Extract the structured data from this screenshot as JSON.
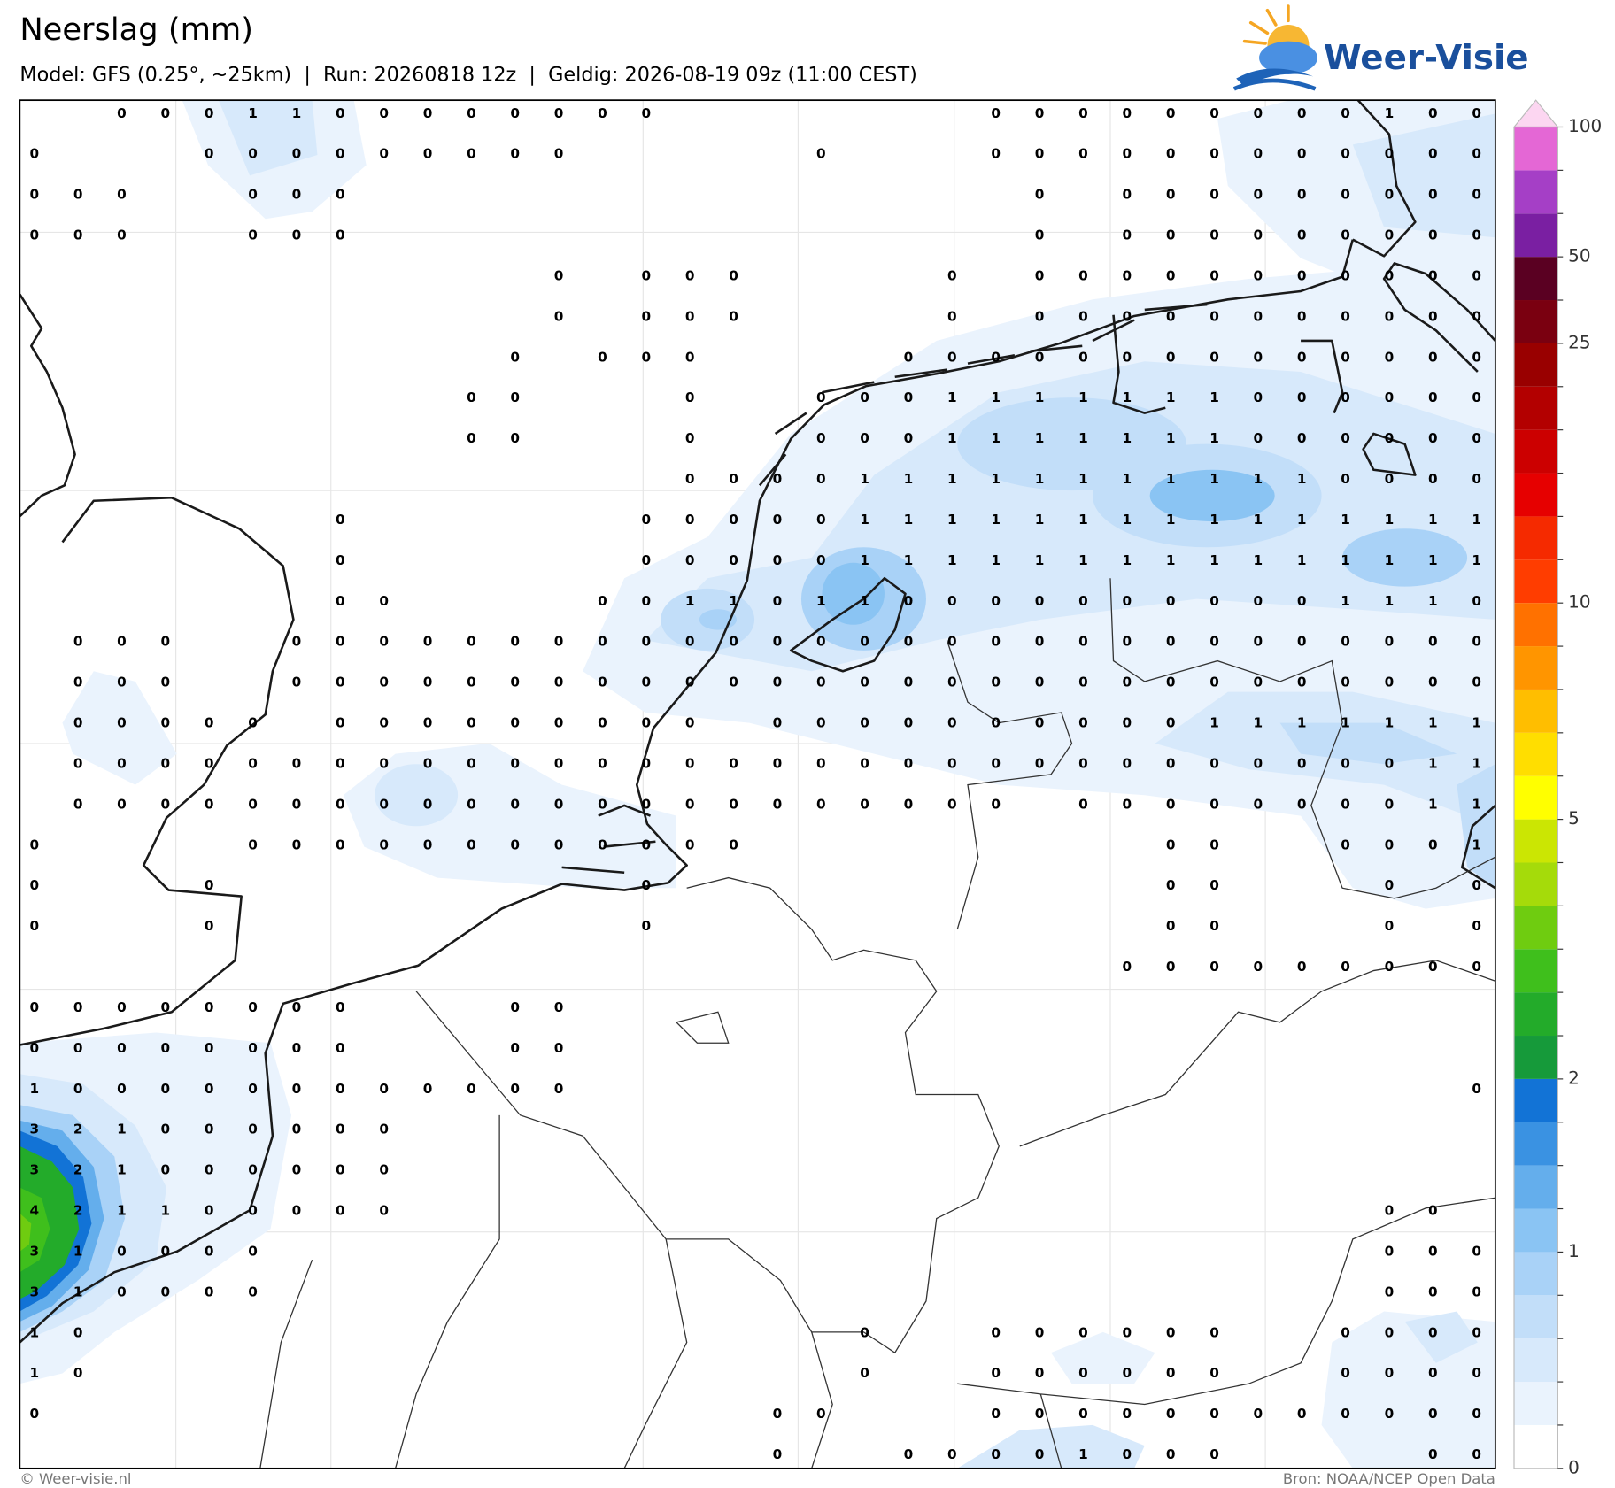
{
  "header": {
    "title": "Neerslag (mm)",
    "subtitle": "Model: GFS (0.25°, ~25km)  |  Run: 20260818 12z  |  Geldig: 2026-08-19 09z (11:00 CEST)",
    "logo": "Weer-Visie"
  },
  "grid": {
    "rows": [
      [
        null,
        null,
        0,
        0,
        0,
        1,
        1,
        0,
        0,
        0,
        0,
        0,
        0,
        0,
        0,
        null,
        null,
        null,
        null,
        null,
        null,
        null,
        0,
        0,
        0,
        0,
        0,
        0,
        0,
        0,
        0,
        1,
        0,
        0
      ],
      [
        0,
        null,
        null,
        null,
        0,
        0,
        0,
        0,
        0,
        0,
        0,
        0,
        0,
        null,
        null,
        null,
        null,
        null,
        0,
        null,
        null,
        null,
        0,
        0,
        0,
        0,
        0,
        0,
        0,
        0,
        0,
        0,
        0,
        0
      ],
      [
        0,
        0,
        0,
        null,
        null,
        0,
        0,
        0,
        null,
        null,
        null,
        null,
        null,
        null,
        null,
        null,
        null,
        null,
        null,
        null,
        null,
        null,
        null,
        0,
        null,
        0,
        0,
        0,
        0,
        0,
        0,
        0,
        0,
        0
      ],
      [
        0,
        0,
        0,
        null,
        null,
        0,
        0,
        0,
        null,
        null,
        null,
        null,
        null,
        null,
        null,
        null,
        null,
        null,
        null,
        null,
        null,
        null,
        null,
        0,
        null,
        0,
        0,
        0,
        0,
        0,
        0,
        0,
        0,
        0
      ],
      [
        null,
        null,
        null,
        null,
        null,
        null,
        null,
        null,
        null,
        null,
        null,
        null,
        0,
        null,
        0,
        0,
        0,
        null,
        null,
        null,
        null,
        0,
        null,
        0,
        0,
        0,
        0,
        0,
        0,
        0,
        0,
        0,
        0,
        0
      ],
      [
        null,
        null,
        null,
        null,
        null,
        null,
        null,
        null,
        null,
        null,
        null,
        null,
        0,
        null,
        0,
        0,
        0,
        null,
        null,
        null,
        null,
        0,
        null,
        0,
        0,
        0,
        0,
        0,
        0,
        0,
        0,
        0,
        0,
        0
      ],
      [
        null,
        null,
        null,
        null,
        null,
        null,
        null,
        null,
        null,
        null,
        null,
        0,
        null,
        0,
        0,
        0,
        null,
        null,
        null,
        null,
        0,
        0,
        0,
        0,
        0,
        0,
        0,
        0,
        0,
        0,
        0,
        0,
        0,
        0
      ],
      [
        null,
        null,
        null,
        null,
        null,
        null,
        null,
        null,
        null,
        null,
        0,
        0,
        null,
        null,
        null,
        0,
        null,
        null,
        0,
        0,
        0,
        1,
        1,
        1,
        1,
        1,
        1,
        1,
        0,
        0,
        0,
        0,
        0,
        0
      ],
      [
        null,
        null,
        null,
        null,
        null,
        null,
        null,
        null,
        null,
        null,
        0,
        0,
        null,
        null,
        null,
        0,
        null,
        null,
        0,
        0,
        0,
        1,
        1,
        1,
        1,
        1,
        1,
        1,
        0,
        0,
        0,
        0,
        0,
        0
      ],
      [
        null,
        null,
        null,
        null,
        null,
        null,
        null,
        null,
        null,
        null,
        null,
        null,
        null,
        null,
        null,
        0,
        0,
        0,
        0,
        1,
        1,
        1,
        1,
        1,
        1,
        1,
        1,
        1,
        1,
        1,
        0,
        0,
        0,
        0
      ],
      [
        null,
        null,
        null,
        null,
        null,
        null,
        null,
        0,
        null,
        null,
        null,
        null,
        null,
        null,
        0,
        0,
        0,
        0,
        0,
        1,
        1,
        1,
        1,
        1,
        1,
        1,
        1,
        1,
        1,
        1,
        1,
        1,
        1,
        1
      ],
      [
        null,
        null,
        null,
        null,
        null,
        null,
        null,
        0,
        null,
        null,
        null,
        null,
        null,
        null,
        0,
        0,
        0,
        0,
        0,
        1,
        1,
        1,
        1,
        1,
        1,
        1,
        1,
        1,
        1,
        1,
        1,
        1,
        1,
        1
      ],
      [
        null,
        null,
        null,
        null,
        null,
        null,
        null,
        0,
        0,
        null,
        null,
        null,
        null,
        0,
        0,
        1,
        1,
        0,
        1,
        1,
        0,
        0,
        0,
        0,
        0,
        0,
        0,
        0,
        0,
        0,
        1,
        1,
        1,
        0
      ],
      [
        null,
        0,
        0,
        0,
        null,
        null,
        0,
        0,
        0,
        0,
        0,
        0,
        0,
        0,
        0,
        0,
        0,
        0,
        0,
        0,
        0,
        0,
        0,
        0,
        0,
        0,
        0,
        0,
        0,
        0,
        0,
        0,
        0,
        0
      ],
      [
        null,
        0,
        0,
        0,
        null,
        null,
        0,
        0,
        0,
        0,
        0,
        0,
        0,
        0,
        0,
        0,
        0,
        0,
        0,
        0,
        0,
        0,
        0,
        0,
        0,
        0,
        0,
        0,
        0,
        0,
        0,
        0,
        0,
        0
      ],
      [
        null,
        0,
        0,
        0,
        0,
        0,
        null,
        0,
        0,
        0,
        0,
        0,
        0,
        0,
        0,
        0,
        null,
        0,
        0,
        0,
        0,
        0,
        0,
        0,
        0,
        0,
        0,
        1,
        1,
        1,
        1,
        1,
        1,
        1
      ],
      [
        null,
        0,
        0,
        0,
        0,
        0,
        0,
        0,
        0,
        0,
        0,
        0,
        0,
        0,
        0,
        0,
        0,
        0,
        0,
        0,
        0,
        0,
        0,
        0,
        0,
        0,
        0,
        0,
        0,
        0,
        0,
        0,
        1,
        1
      ],
      [
        null,
        0,
        0,
        0,
        0,
        0,
        0,
        0,
        0,
        0,
        0,
        0,
        0,
        0,
        0,
        0,
        0,
        0,
        0,
        0,
        0,
        0,
        0,
        null,
        0,
        0,
        0,
        0,
        0,
        0,
        0,
        0,
        1,
        1
      ],
      [
        0,
        null,
        null,
        null,
        null,
        0,
        0,
        0,
        0,
        0,
        0,
        0,
        0,
        0,
        0,
        0,
        0,
        null,
        null,
        null,
        null,
        null,
        null,
        null,
        null,
        null,
        0,
        0,
        null,
        null,
        0,
        0,
        0,
        1
      ],
      [
        0,
        null,
        null,
        null,
        0,
        null,
        null,
        null,
        null,
        null,
        null,
        null,
        null,
        null,
        0,
        null,
        null,
        null,
        null,
        null,
        null,
        null,
        null,
        null,
        null,
        null,
        0,
        0,
        null,
        null,
        null,
        0,
        null,
        0
      ],
      [
        0,
        null,
        null,
        null,
        0,
        null,
        null,
        null,
        null,
        null,
        null,
        null,
        null,
        null,
        0,
        null,
        null,
        null,
        null,
        null,
        null,
        null,
        null,
        null,
        null,
        null,
        0,
        0,
        null,
        null,
        null,
        0,
        null,
        0
      ],
      [
        null,
        null,
        null,
        null,
        null,
        null,
        null,
        null,
        null,
        null,
        null,
        null,
        null,
        null,
        null,
        null,
        null,
        null,
        null,
        null,
        null,
        null,
        null,
        null,
        null,
        0,
        0,
        0,
        0,
        0,
        0,
        0,
        0,
        0
      ],
      [
        0,
        0,
        0,
        0,
        0,
        0,
        0,
        0,
        null,
        null,
        null,
        0,
        0,
        null,
        null,
        null,
        null,
        null,
        null,
        null,
        null,
        null,
        null,
        null,
        null,
        null,
        null,
        null,
        null,
        null,
        null,
        null,
        null,
        null
      ],
      [
        0,
        0,
        0,
        0,
        0,
        0,
        0,
        0,
        null,
        null,
        null,
        0,
        0,
        null,
        null,
        null,
        null,
        null,
        null,
        null,
        null,
        null,
        null,
        null,
        null,
        null,
        null,
        null,
        null,
        null,
        null,
        null,
        null,
        null
      ],
      [
        1,
        0,
        0,
        0,
        0,
        0,
        0,
        0,
        0,
        0,
        0,
        0,
        0,
        null,
        null,
        null,
        null,
        null,
        null,
        null,
        null,
        null,
        null,
        null,
        null,
        null,
        null,
        null,
        null,
        null,
        null,
        null,
        null,
        0
      ],
      [
        3,
        2,
        1,
        0,
        0,
        0,
        0,
        0,
        0,
        null,
        null,
        null,
        null,
        null,
        null,
        null,
        null,
        null,
        null,
        null,
        null,
        null,
        null,
        null,
        null,
        null,
        null,
        null,
        null,
        null,
        null,
        null,
        null,
        null
      ],
      [
        3,
        2,
        1,
        0,
        0,
        0,
        0,
        0,
        0,
        null,
        null,
        null,
        null,
        null,
        null,
        null,
        null,
        null,
        null,
        null,
        null,
        null,
        null,
        null,
        null,
        null,
        null,
        null,
        null,
        null,
        null,
        null,
        null,
        null
      ],
      [
        4,
        2,
        1,
        1,
        0,
        0,
        0,
        0,
        0,
        null,
        null,
        null,
        null,
        null,
        null,
        null,
        null,
        null,
        null,
        null,
        null,
        null,
        null,
        null,
        null,
        null,
        null,
        null,
        null,
        null,
        null,
        0,
        0,
        null
      ],
      [
        3,
        1,
        0,
        0,
        0,
        0,
        null,
        null,
        null,
        null,
        null,
        null,
        null,
        null,
        null,
        null,
        null,
        null,
        null,
        null,
        null,
        null,
        null,
        null,
        null,
        null,
        null,
        null,
        null,
        null,
        null,
        0,
        0,
        0
      ],
      [
        3,
        1,
        0,
        0,
        0,
        0,
        null,
        null,
        null,
        null,
        null,
        null,
        null,
        null,
        null,
        null,
        null,
        null,
        null,
        null,
        null,
        null,
        null,
        null,
        null,
        null,
        null,
        null,
        null,
        null,
        null,
        0,
        0,
        0
      ],
      [
        1,
        0,
        null,
        null,
        null,
        null,
        null,
        null,
        null,
        null,
        null,
        null,
        null,
        null,
        null,
        null,
        null,
        null,
        null,
        0,
        null,
        null,
        0,
        0,
        0,
        0,
        0,
        0,
        null,
        null,
        0,
        0,
        0,
        0
      ],
      [
        1,
        0,
        null,
        null,
        null,
        null,
        null,
        null,
        null,
        null,
        null,
        null,
        null,
        null,
        null,
        null,
        null,
        null,
        null,
        0,
        null,
        null,
        0,
        0,
        0,
        0,
        0,
        0,
        null,
        null,
        0,
        0,
        0,
        0
      ],
      [
        0,
        null,
        null,
        null,
        null,
        null,
        null,
        null,
        null,
        null,
        null,
        null,
        null,
        null,
        null,
        null,
        null,
        0,
        0,
        null,
        null,
        null,
        0,
        0,
        0,
        0,
        0,
        0,
        0,
        0,
        0,
        0,
        0,
        0
      ],
      [
        null,
        null,
        null,
        null,
        null,
        null,
        null,
        null,
        null,
        null,
        null,
        null,
        null,
        null,
        null,
        null,
        null,
        0,
        null,
        null,
        0,
        0,
        0,
        0,
        1,
        0,
        0,
        0,
        null,
        null,
        null,
        null,
        0,
        0
      ]
    ]
  },
  "colorbar": {
    "levels": [
      0,
      0.1,
      0.25,
      0.5,
      0.75,
      1,
      1.25,
      1.5,
      1.75,
      2,
      2.5,
      3,
      3.5,
      4,
      4.5,
      5,
      6,
      7,
      8,
      9,
      10,
      12.5,
      15,
      17.5,
      20,
      22.5,
      25,
      37.5,
      50,
      60,
      80,
      100
    ],
    "colors": [
      "#ffffff",
      "#eaf3fd",
      "#d7e9fb",
      "#c2def9",
      "#a9d2f7",
      "#8ac4f3",
      "#64aeec",
      "#3a92e2",
      "#1273d6",
      "#169a3a",
      "#23ab2a",
      "#3fbf1c",
      "#6fcc10",
      "#a5db0a",
      "#cbe603",
      "#ffff00",
      "#ffde00",
      "#ffbe00",
      "#ff9500",
      "#ff7100",
      "#ff3d00",
      "#f52a00",
      "#e60000",
      "#cc0000",
      "#b30000",
      "#990000",
      "#7a0010",
      "#5a0022",
      "#7a1fa2",
      "#a53fc6",
      "#e467d5"
    ],
    "extend_color": "#fcd6f1",
    "ticks": [
      0,
      1,
      2,
      5,
      10,
      25,
      50,
      100
    ]
  },
  "footer": {
    "credit": "© Weer-visie.nl",
    "source": "Bron: NOAA/NCEP Open Data"
  }
}
